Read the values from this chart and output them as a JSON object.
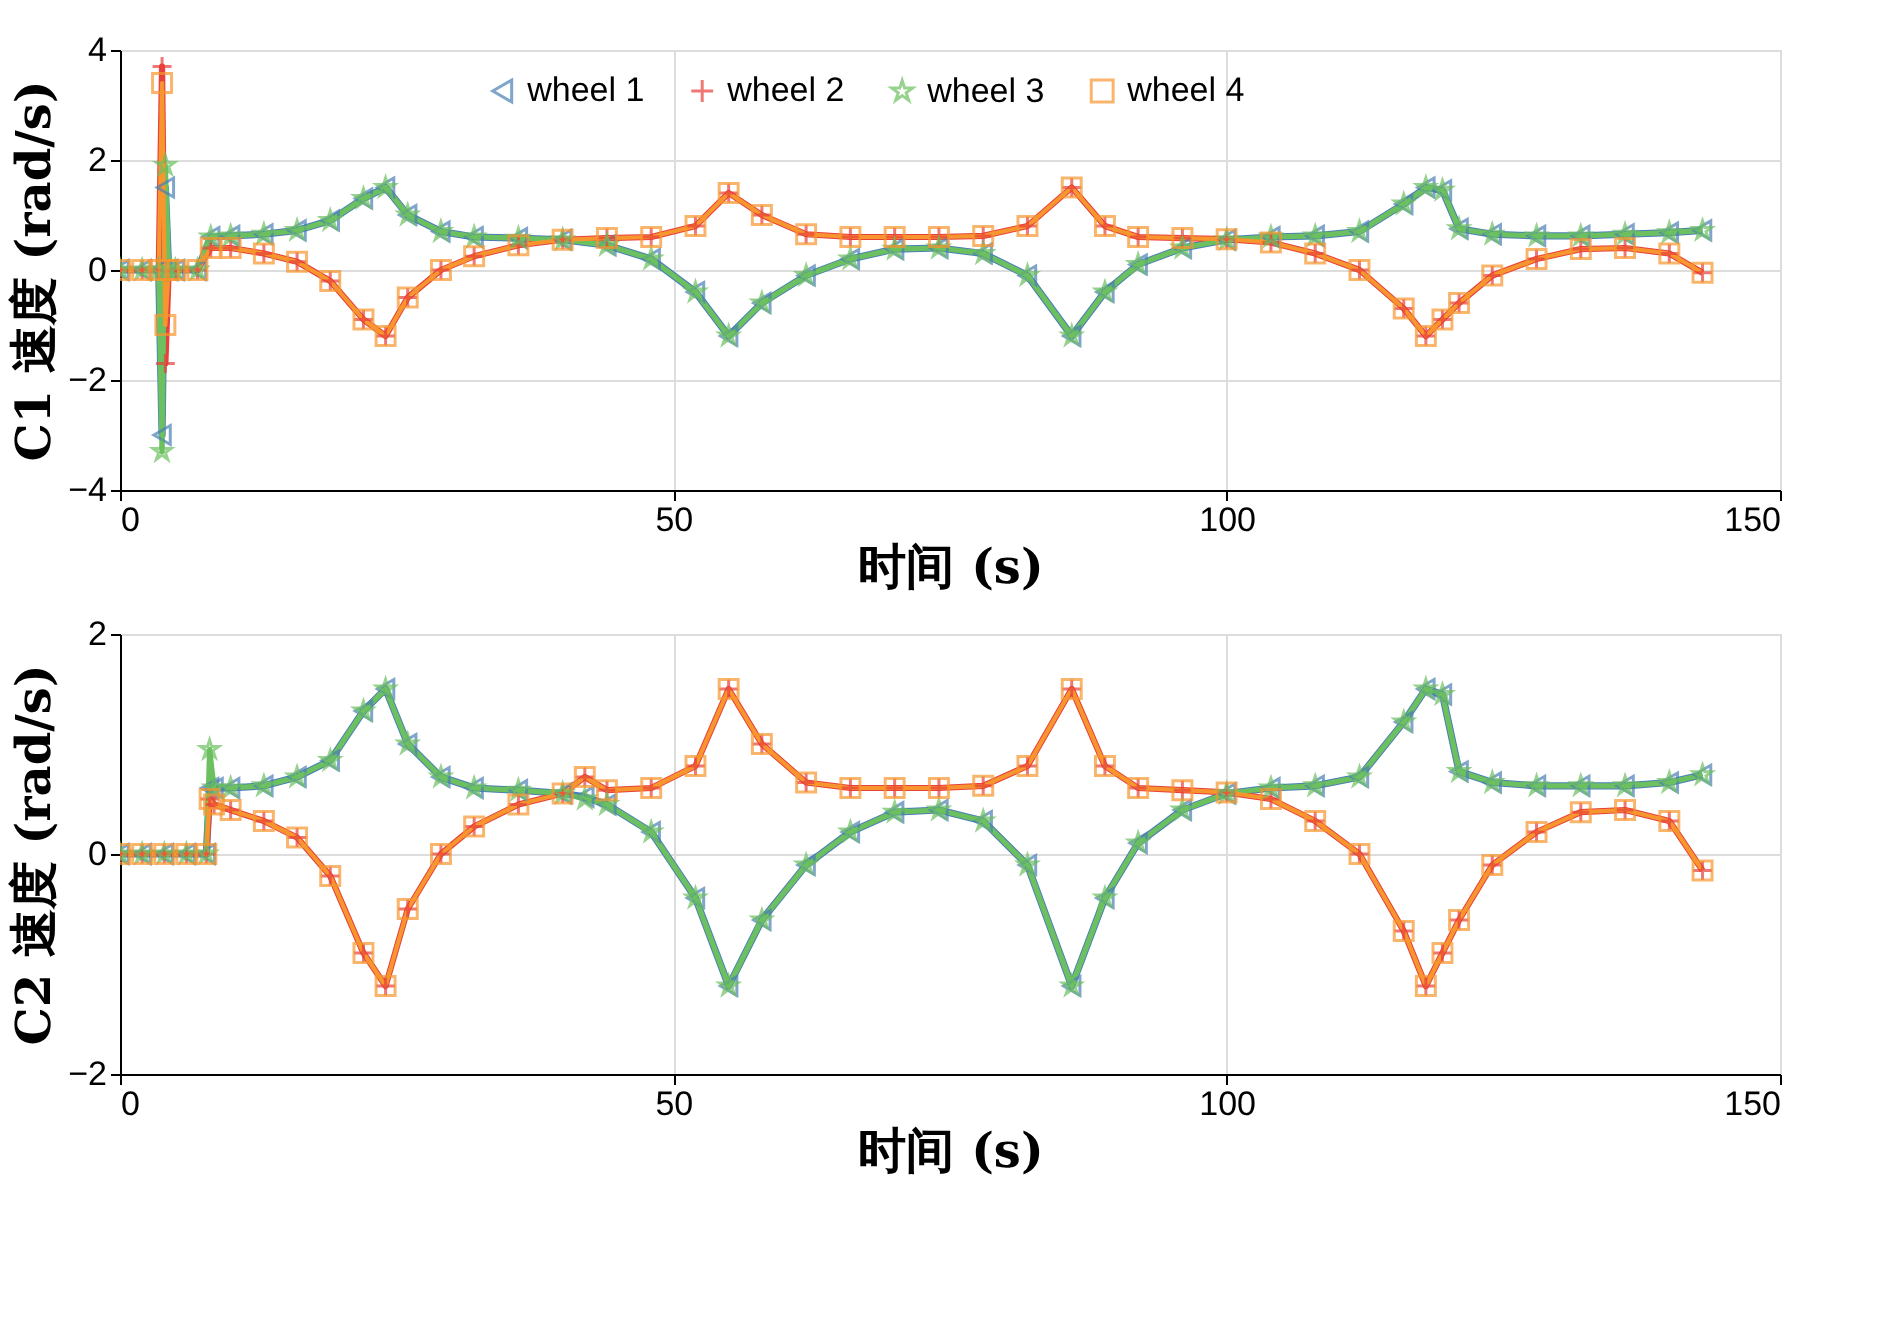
{
  "chart_data": [
    {
      "type": "line",
      "x": [
        0,
        2,
        3.5,
        3.8,
        4.1,
        4.4,
        5,
        7,
        8.2,
        10,
        13,
        16,
        19,
        22,
        24,
        26,
        29,
        32,
        36,
        40,
        44,
        48,
        52,
        55,
        58,
        62,
        66,
        70,
        74,
        78,
        82,
        86,
        89,
        92,
        96,
        100,
        104,
        108,
        112,
        116,
        118,
        119.5,
        121,
        124,
        128,
        132,
        136,
        140,
        143
      ],
      "xlabel": "时间 (s)",
      "ylabel": "C1 速度 (rad/s)",
      "xlim": [
        0,
        150
      ],
      "xticks": [
        0,
        50,
        100,
        150
      ],
      "ylim": [
        -4,
        4
      ],
      "yticks": [
        -4,
        -2,
        0,
        2,
        4
      ],
      "grid": true,
      "legend": "top",
      "line_style": "solid",
      "series": [
        {
          "name": "wheel 1",
          "color": "#4a7fb5",
          "marker": "triangle",
          "values": [
            0,
            0,
            0,
            -3.0,
            1.5,
            0,
            0,
            0,
            0.6,
            0.62,
            0.65,
            0.72,
            0.9,
            1.3,
            1.5,
            1.0,
            0.7,
            0.6,
            0.58,
            0.55,
            0.45,
            0.2,
            -0.4,
            -1.2,
            -0.6,
            -0.1,
            0.2,
            0.38,
            0.4,
            0.3,
            -0.1,
            -1.2,
            -0.4,
            0.1,
            0.4,
            0.55,
            0.6,
            0.62,
            0.7,
            1.2,
            1.5,
            1.45,
            0.75,
            0.65,
            0.62,
            0.62,
            0.65,
            0.68,
            0.72
          ]
        },
        {
          "name": "wheel 2",
          "color": "#e8403a",
          "marker": "cross",
          "values": [
            0,
            0,
            0,
            3.7,
            -1.7,
            0,
            0,
            0,
            0.4,
            0.4,
            0.3,
            0.15,
            -0.2,
            -0.9,
            -1.2,
            -0.5,
            0,
            0.25,
            0.45,
            0.55,
            0.58,
            0.6,
            0.8,
            1.4,
            1.0,
            0.65,
            0.6,
            0.6,
            0.6,
            0.62,
            0.8,
            1.5,
            0.8,
            0.6,
            0.58,
            0.56,
            0.5,
            0.3,
            0,
            -0.7,
            -1.2,
            -0.9,
            -0.6,
            -0.1,
            0.2,
            0.38,
            0.4,
            0.3,
            -0.05
          ]
        },
        {
          "name": "wheel 3",
          "color": "#6cc05f",
          "marker": "star",
          "values": [
            0,
            0,
            0,
            -3.3,
            1.9,
            0,
            0,
            0,
            0.6,
            0.62,
            0.65,
            0.72,
            0.9,
            1.3,
            1.5,
            1.0,
            0.7,
            0.6,
            0.58,
            0.55,
            0.45,
            0.2,
            -0.4,
            -1.2,
            -0.6,
            -0.1,
            0.2,
            0.38,
            0.4,
            0.3,
            -0.1,
            -1.2,
            -0.4,
            0.1,
            0.4,
            0.55,
            0.6,
            0.62,
            0.7,
            1.2,
            1.5,
            1.45,
            0.75,
            0.65,
            0.62,
            0.62,
            0.65,
            0.68,
            0.72
          ]
        },
        {
          "name": "wheel 4",
          "color": "#f7962f",
          "marker": "square",
          "values": [
            0,
            0,
            0,
            3.4,
            -1.0,
            0,
            0,
            0,
            0.4,
            0.4,
            0.3,
            0.15,
            -0.2,
            -0.9,
            -1.2,
            -0.5,
            0,
            0.25,
            0.45,
            0.55,
            0.58,
            0.6,
            0.8,
            1.4,
            1.0,
            0.65,
            0.6,
            0.6,
            0.6,
            0.62,
            0.8,
            1.5,
            0.8,
            0.6,
            0.58,
            0.56,
            0.5,
            0.3,
            0,
            -0.7,
            -1.2,
            -0.9,
            -0.6,
            -0.1,
            0.2,
            0.38,
            0.4,
            0.3,
            -0.05
          ]
        }
      ]
    },
    {
      "type": "line",
      "x": [
        0,
        2,
        4,
        6,
        7.8,
        8.1,
        8.5,
        10,
        13,
        16,
        19,
        22,
        24,
        26,
        29,
        32,
        36,
        40,
        42,
        44,
        48,
        52,
        55,
        58,
        62,
        66,
        70,
        74,
        78,
        82,
        86,
        89,
        92,
        96,
        100,
        104,
        108,
        112,
        116,
        118,
        119.5,
        121,
        124,
        128,
        132,
        136,
        140,
        143
      ],
      "xlabel": "时间 (s)",
      "ylabel": "C2 速度 (rad/s)",
      "xlim": [
        0,
        150
      ],
      "xticks": [
        0,
        50,
        100,
        150
      ],
      "ylim": [
        -2,
        2
      ],
      "yticks": [
        -2,
        0,
        2
      ],
      "grid": true,
      "legend": "top",
      "line_style": "solid",
      "series": [
        {
          "name": "wheel 1",
          "color": "#4a7fb5",
          "marker": "triangle",
          "values": [
            0,
            0,
            0,
            0,
            0,
            0.6,
            0.6,
            0.6,
            0.62,
            0.7,
            0.85,
            1.3,
            1.5,
            1.0,
            0.7,
            0.6,
            0.58,
            0.55,
            0.52,
            0.45,
            0.2,
            -0.4,
            -1.2,
            -0.6,
            -0.1,
            0.2,
            0.38,
            0.4,
            0.3,
            -0.1,
            -1.2,
            -0.4,
            0.1,
            0.4,
            0.55,
            0.6,
            0.62,
            0.7,
            1.2,
            1.5,
            1.45,
            0.75,
            0.65,
            0.62,
            0.62,
            0.62,
            0.65,
            0.72
          ]
        },
        {
          "name": "wheel 2",
          "color": "#e8403a",
          "marker": "cross",
          "values": [
            0,
            0,
            0,
            0,
            0,
            0.5,
            0.45,
            0.4,
            0.3,
            0.15,
            -0.2,
            -0.9,
            -1.2,
            -0.5,
            0,
            0.25,
            0.45,
            0.55,
            0.7,
            0.58,
            0.6,
            0.8,
            1.5,
            1.0,
            0.65,
            0.6,
            0.6,
            0.6,
            0.62,
            0.8,
            1.5,
            0.8,
            0.6,
            0.58,
            0.56,
            0.5,
            0.3,
            0,
            -0.7,
            -1.2,
            -0.9,
            -0.6,
            -0.1,
            0.2,
            0.38,
            0.4,
            0.3,
            -0.15
          ]
        },
        {
          "name": "wheel 3",
          "color": "#6cc05f",
          "marker": "star",
          "values": [
            0,
            0,
            0,
            0,
            0,
            0.95,
            0.6,
            0.6,
            0.62,
            0.7,
            0.85,
            1.3,
            1.5,
            1.0,
            0.7,
            0.6,
            0.58,
            0.55,
            0.5,
            0.45,
            0.2,
            -0.4,
            -1.2,
            -0.6,
            -0.1,
            0.2,
            0.38,
            0.4,
            0.3,
            -0.1,
            -1.2,
            -0.4,
            0.1,
            0.4,
            0.55,
            0.6,
            0.62,
            0.7,
            1.2,
            1.5,
            1.45,
            0.75,
            0.65,
            0.62,
            0.62,
            0.62,
            0.65,
            0.72
          ]
        },
        {
          "name": "wheel 4",
          "color": "#f7962f",
          "marker": "square",
          "values": [
            0,
            0,
            0,
            0,
            0,
            0.5,
            0.45,
            0.4,
            0.3,
            0.15,
            -0.2,
            -0.9,
            -1.2,
            -0.5,
            0,
            0.25,
            0.45,
            0.55,
            0.7,
            0.58,
            0.6,
            0.8,
            1.5,
            1.0,
            0.65,
            0.6,
            0.6,
            0.6,
            0.62,
            0.8,
            1.5,
            0.8,
            0.6,
            0.58,
            0.56,
            0.5,
            0.3,
            0,
            -0.7,
            -1.2,
            -0.9,
            -0.6,
            -0.1,
            0.2,
            0.38,
            0.4,
            0.3,
            -0.15
          ]
        }
      ]
    }
  ]
}
